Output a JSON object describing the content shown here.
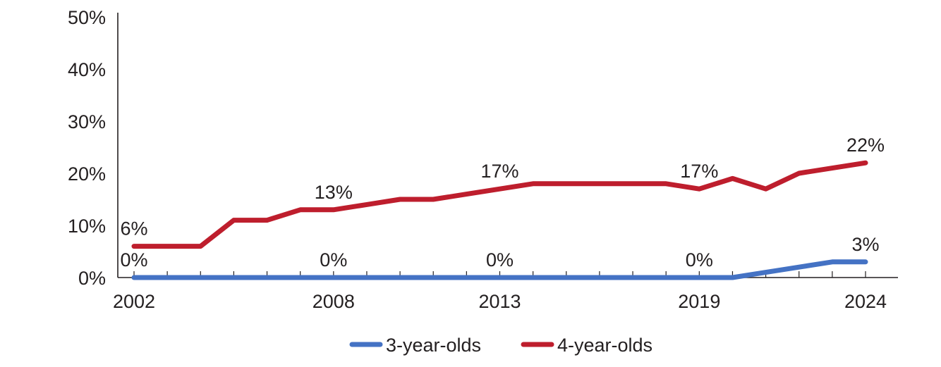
{
  "chart_data": {
    "type": "line",
    "x": [
      2002,
      2003,
      2004,
      2005,
      2006,
      2007,
      2008,
      2009,
      2010,
      2011,
      2012,
      2013,
      2014,
      2015,
      2016,
      2017,
      2018,
      2019,
      2020,
      2021,
      2022,
      2023,
      2024
    ],
    "x_tick_labels": [
      "2002",
      "2008",
      "2013",
      "2019",
      "2024"
    ],
    "y_tick_labels": [
      "0%",
      "10%",
      "20%",
      "30%",
      "40%",
      "50%"
    ],
    "ylim": [
      0,
      50
    ],
    "y_unit": "%",
    "grid": false,
    "legend_position": "bottom",
    "series": [
      {
        "name": "3-year-olds",
        "color": "#4472c4",
        "values": [
          0,
          0,
          0,
          0,
          0,
          0,
          0,
          0,
          0,
          0,
          0,
          0,
          0,
          0,
          0,
          0,
          0,
          0,
          0,
          1,
          2,
          3,
          3
        ],
        "data_labels": [
          {
            "x": 2002,
            "text": "0%"
          },
          {
            "x": 2008,
            "text": "0%"
          },
          {
            "x": 2013,
            "text": "0%"
          },
          {
            "x": 2019,
            "text": "0%"
          },
          {
            "x": 2024,
            "text": "3%"
          }
        ]
      },
      {
        "name": "4-year-olds",
        "color": "#be1e2d",
        "values": [
          6,
          6,
          6,
          11,
          11,
          13,
          13,
          14,
          15,
          15,
          16,
          17,
          18,
          18,
          18,
          18,
          18,
          17,
          19,
          17,
          20,
          21,
          22
        ],
        "data_labels": [
          {
            "x": 2002,
            "text": "6%"
          },
          {
            "x": 2008,
            "text": "13%"
          },
          {
            "x": 2013,
            "text": "17%"
          },
          {
            "x": 2019,
            "text": "17%"
          },
          {
            "x": 2024,
            "text": "22%"
          }
        ]
      }
    ]
  }
}
